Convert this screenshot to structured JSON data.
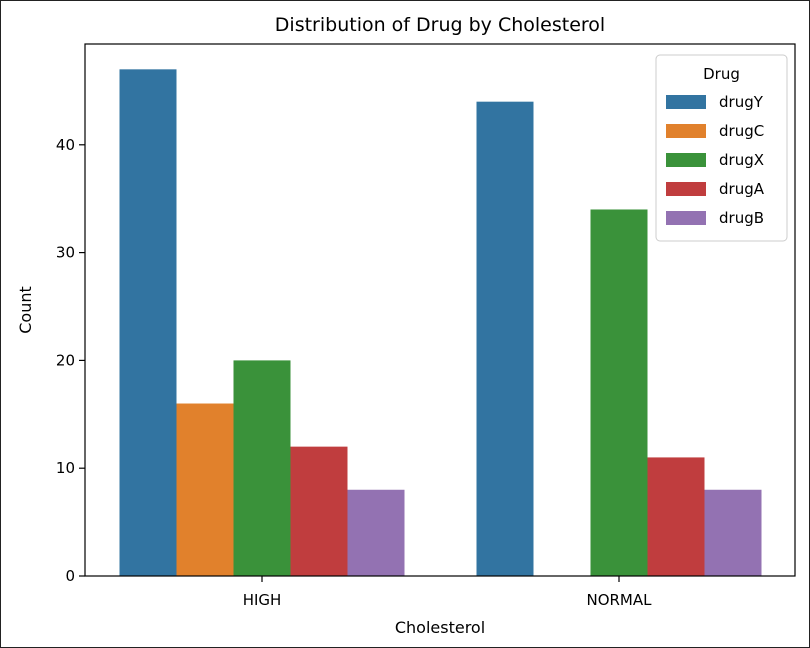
{
  "chart_data": {
    "type": "bar",
    "title": "Distribution of Drug by Cholesterol",
    "xlabel": "Cholesterol",
    "ylabel": "Count",
    "categories": [
      "HIGH",
      "NORMAL"
    ],
    "ylim": [
      0,
      49.35
    ],
    "yticks": [
      0,
      10,
      20,
      30,
      40
    ],
    "grid": false,
    "legend": {
      "title": "Drug",
      "placement": "top-right"
    },
    "series": [
      {
        "name": "drugY",
        "color": "#3274a1",
        "values": [
          47,
          44
        ]
      },
      {
        "name": "drugC",
        "color": "#e1812c",
        "values": [
          16,
          0
        ]
      },
      {
        "name": "drugX",
        "color": "#3a923a",
        "values": [
          20,
          34
        ]
      },
      {
        "name": "drugA",
        "color": "#c03d3e",
        "values": [
          12,
          11
        ]
      },
      {
        "name": "drugB",
        "color": "#9372b2",
        "values": [
          8,
          8
        ]
      }
    ]
  }
}
